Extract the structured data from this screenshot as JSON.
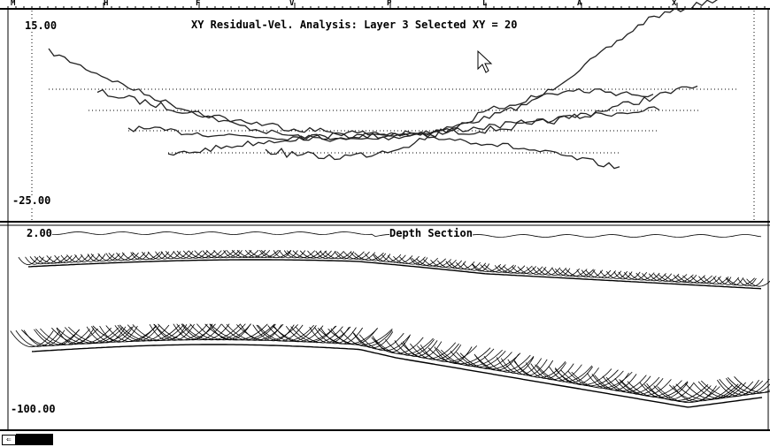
{
  "top_panel": {
    "title": "XY Residual-Vel. Analysis: Layer 3  Selected XY = 20",
    "y_max_label": "15.00",
    "y_min_label": "-25.00"
  },
  "bottom_panel": {
    "title": "Depth Section",
    "y_top_label": "2.00",
    "y_bottom_label": "-100.00"
  },
  "top_markers": [
    "M",
    "H",
    "F",
    "V",
    "P",
    "L",
    "A",
    "X"
  ],
  "statusbar": {
    "left_arrow": "⇐"
  }
}
